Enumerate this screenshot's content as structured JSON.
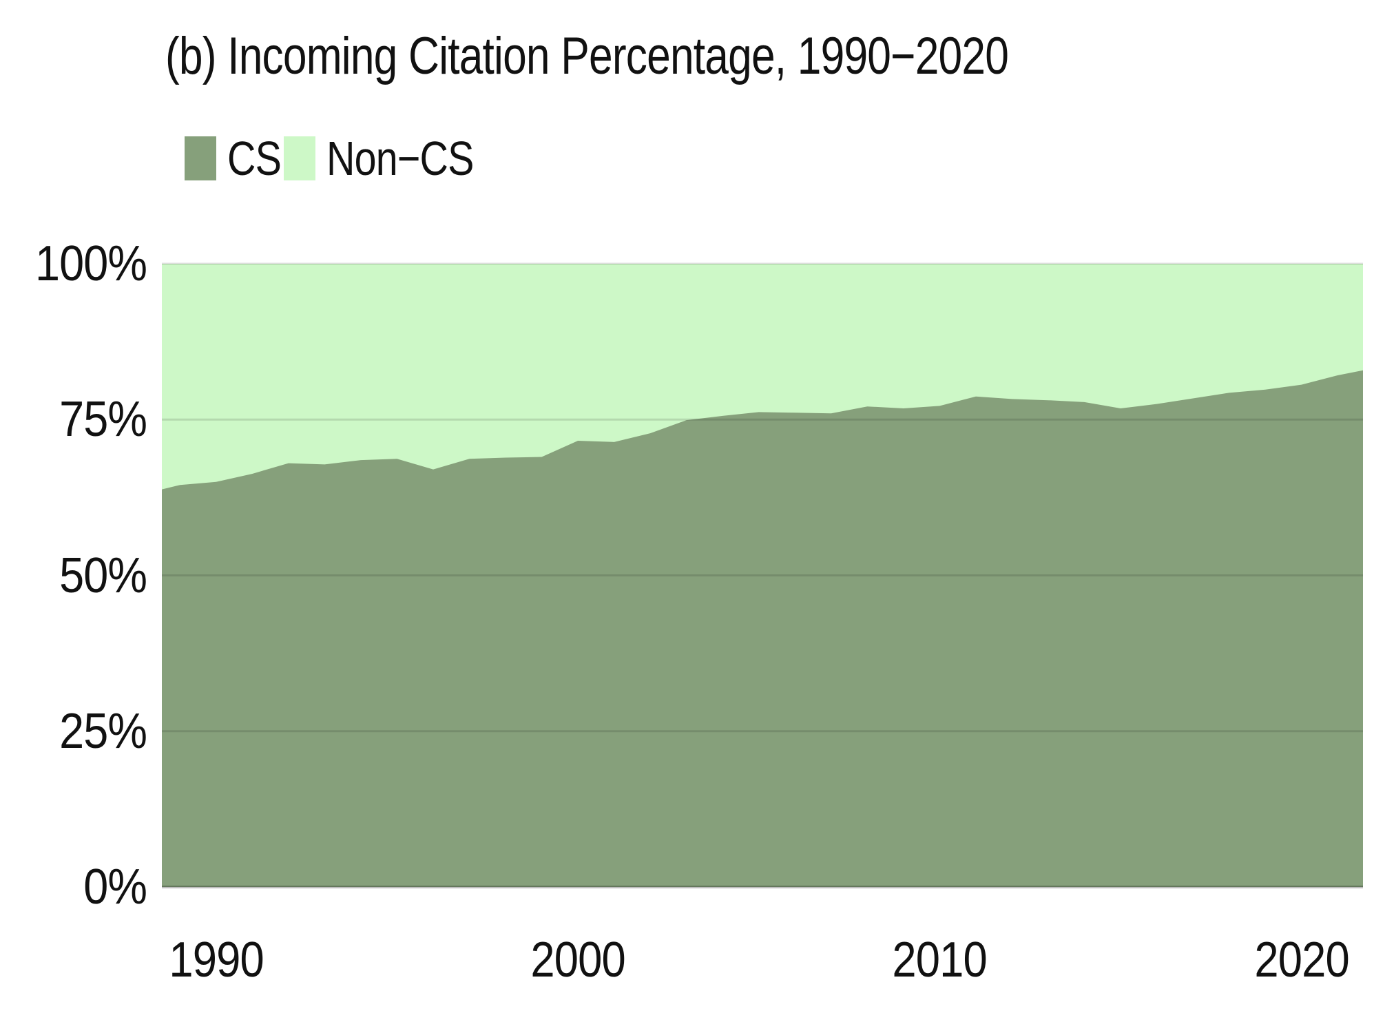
{
  "title": "(b) Incoming Citation Percentage, 1990−2020",
  "legend": {
    "position": "top-left",
    "items": [
      {
        "label": "CS",
        "color": "#86A07B"
      },
      {
        "label": "Non−CS",
        "color": "#CDF8C7"
      }
    ]
  },
  "chart_data": {
    "type": "area",
    "stacked": true,
    "units": "percent",
    "title": "(b) Incoming Citation Percentage, 1990−2020",
    "xlabel": "",
    "ylabel": "",
    "grid": "horizontal",
    "gridline_color_inner": "rgba(0,0,0,0.12)",
    "gridline_color_baseline": "rgba(0,0,0,0.25)",
    "legend_position": "top-left",
    "xlim": [
      1988.5,
      2021.7
    ],
    "ylim": [
      0,
      100
    ],
    "x": [
      1988.5,
      1989,
      1990,
      1991,
      1992,
      1993,
      1994,
      1995,
      1996,
      1997,
      1998,
      1999,
      2000,
      2001,
      2002,
      2003,
      2004,
      2005,
      2006,
      2007,
      2008,
      2009,
      2010,
      2011,
      2012,
      2013,
      2014,
      2015,
      2016,
      2017,
      2018,
      2019,
      2020,
      2021,
      2021.7
    ],
    "series": [
      {
        "name": "CS",
        "color": "#86A07B",
        "values": [
          63.8,
          64.5,
          65.0,
          66.3,
          68.0,
          67.8,
          68.5,
          68.7,
          67.0,
          68.7,
          68.9,
          69.0,
          71.6,
          71.4,
          72.8,
          74.9,
          75.6,
          76.2,
          76.1,
          76.0,
          77.1,
          76.8,
          77.2,
          78.7,
          78.3,
          78.1,
          77.8,
          76.8,
          77.5,
          78.4,
          79.3,
          79.8,
          80.6,
          82.1,
          82.9
        ]
      },
      {
        "name": "Non−CS",
        "color": "#CDF8C7",
        "values": [
          36.2,
          35.5,
          35.0,
          33.7,
          32.0,
          32.2,
          31.5,
          31.3,
          33.0,
          31.3,
          31.1,
          31.0,
          28.4,
          28.6,
          27.2,
          25.1,
          24.4,
          23.8,
          23.9,
          24.0,
          22.9,
          23.2,
          22.8,
          21.3,
          21.7,
          21.9,
          22.2,
          23.2,
          22.5,
          21.6,
          20.7,
          20.2,
          19.4,
          17.9,
          17.1
        ]
      }
    ],
    "x_ticks": [
      {
        "value": 1990,
        "label": "1990"
      },
      {
        "value": 2000,
        "label": "2000"
      },
      {
        "value": 2010,
        "label": "2010"
      },
      {
        "value": 2020,
        "label": "2020"
      }
    ],
    "y_ticks": [
      {
        "value": 0,
        "label": "0%"
      },
      {
        "value": 25,
        "label": "25%"
      },
      {
        "value": 50,
        "label": "50%"
      },
      {
        "value": 75,
        "label": "75%"
      },
      {
        "value": 100,
        "label": "100%"
      }
    ]
  }
}
